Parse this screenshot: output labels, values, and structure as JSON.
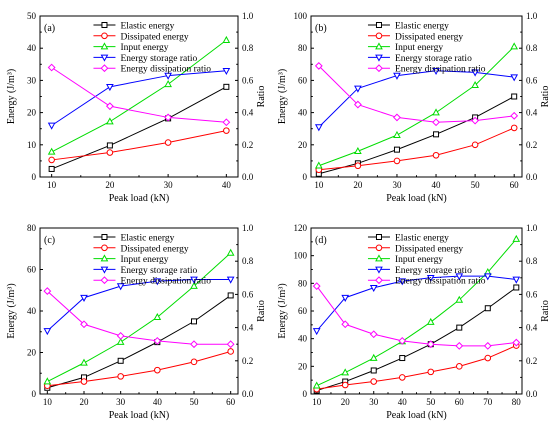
{
  "chart_data": [
    {
      "type": "line",
      "panel_label": "(a)",
      "x": [
        10,
        20,
        30,
        40
      ],
      "xlim": [
        8,
        42
      ],
      "xticks": [
        10,
        20,
        30,
        40
      ],
      "xlabel": "Peak load (kN)",
      "ylabel": "Energy (J/m³)",
      "ylim": [
        0,
        50
      ],
      "yticks": [
        0,
        10,
        20,
        30,
        40,
        50
      ],
      "y2label": "Ratio",
      "y2lim": [
        0,
        1.0
      ],
      "y2ticks": [
        "0.0",
        "0.2",
        "0.4",
        "0.6",
        "0.8",
        "1.0"
      ],
      "legend_position": "top-center",
      "series": [
        {
          "name": "Elastic energy",
          "axis": "left",
          "color": "#000000",
          "values": [
            2.5,
            9.8,
            18.2,
            28.0
          ]
        },
        {
          "name": "Dissipated energy",
          "axis": "left",
          "color": "#ff0000",
          "values": [
            5.3,
            7.6,
            10.7,
            14.4
          ]
        },
        {
          "name": "Input energy",
          "axis": "left",
          "color": "#00dd00",
          "values": [
            7.8,
            17.2,
            28.8,
            42.5
          ]
        },
        {
          "name": "Energy storage ratio",
          "axis": "right",
          "color": "#0000ff",
          "values": [
            0.32,
            0.56,
            0.63,
            0.66
          ]
        },
        {
          "name": "Energy dissipation ratio",
          "axis": "right",
          "color": "#ff00ff",
          "values": [
            0.68,
            0.44,
            0.37,
            0.34
          ]
        }
      ]
    },
    {
      "type": "line",
      "panel_label": "(b)",
      "x": [
        10,
        20,
        30,
        40,
        50,
        60
      ],
      "xlim": [
        8,
        62
      ],
      "xticks": [
        10,
        20,
        30,
        40,
        50,
        60
      ],
      "xlabel": "Peak load (kN)",
      "ylabel": "Energy (J/m³)",
      "ylim": [
        0,
        100
      ],
      "yticks": [
        0,
        20,
        40,
        60,
        80,
        100
      ],
      "y2label": "Ratio",
      "y2lim": [
        0,
        1.0
      ],
      "y2ticks": [
        "0.0",
        "0.2",
        "0.4",
        "0.6",
        "0.8",
        "1.0"
      ],
      "legend_position": "top-center",
      "series": [
        {
          "name": "Elastic energy",
          "axis": "left",
          "color": "#000000",
          "values": [
            2.0,
            8.5,
            17.0,
            26.5,
            37.0,
            50.0
          ]
        },
        {
          "name": "Dissipated energy",
          "axis": "left",
          "color": "#ff0000",
          "values": [
            4.5,
            7.0,
            10.0,
            13.5,
            20.0,
            30.5
          ]
        },
        {
          "name": "Input energy",
          "axis": "left",
          "color": "#00dd00",
          "values": [
            7.0,
            16.0,
            26.0,
            40.0,
            57.0,
            81.0
          ]
        },
        {
          "name": "Energy storage ratio",
          "axis": "right",
          "color": "#0000ff",
          "values": [
            0.31,
            0.55,
            0.63,
            0.66,
            0.65,
            0.62
          ]
        },
        {
          "name": "Energy dissipation ratio",
          "axis": "right",
          "color": "#ff00ff",
          "values": [
            0.69,
            0.45,
            0.37,
            0.34,
            0.35,
            0.38
          ]
        }
      ]
    },
    {
      "type": "line",
      "panel_label": "(c)",
      "x": [
        10,
        20,
        30,
        40,
        50,
        60
      ],
      "xlim": [
        8,
        62
      ],
      "xticks": [
        10,
        20,
        30,
        40,
        50,
        60
      ],
      "xlabel": "Peak load (kN)",
      "ylabel": "Energy (J/m³)",
      "ylim": [
        0,
        80
      ],
      "yticks": [
        0,
        20,
        40,
        60,
        80
      ],
      "y2label": "Ratio",
      "y2lim": [
        0,
        1.0
      ],
      "y2ticks": [
        "0.0",
        "0.2",
        "0.4",
        "0.6",
        "0.8",
        "1.0"
      ],
      "legend_position": "top-center",
      "series": [
        {
          "name": "Elastic energy",
          "axis": "left",
          "color": "#000000",
          "values": [
            3.0,
            8.0,
            16.0,
            25.0,
            35.0,
            47.5
          ]
        },
        {
          "name": "Dissipated energy",
          "axis": "left",
          "color": "#ff0000",
          "values": [
            4.0,
            6.0,
            8.5,
            11.5,
            15.5,
            20.5
          ]
        },
        {
          "name": "Input energy",
          "axis": "left",
          "color": "#00dd00",
          "values": [
            6.0,
            15.0,
            25.0,
            37.0,
            52.0,
            68.0
          ]
        },
        {
          "name": "Energy storage ratio",
          "axis": "right",
          "color": "#0000ff",
          "values": [
            0.38,
            0.58,
            0.65,
            0.68,
            0.69,
            0.69
          ]
        },
        {
          "name": "Energy dissipation ratio",
          "axis": "right",
          "color": "#ff00ff",
          "values": [
            0.62,
            0.42,
            0.35,
            0.32,
            0.3,
            0.3
          ]
        }
      ]
    },
    {
      "type": "line",
      "panel_label": "(d)",
      "x": [
        10,
        20,
        30,
        40,
        50,
        60,
        70,
        80
      ],
      "xlim": [
        8,
        82
      ],
      "xticks": [
        10,
        20,
        30,
        40,
        50,
        60,
        70,
        80
      ],
      "xlabel": "Peak load (kN)",
      "ylabel": "Energy (J/m³)",
      "ylim": [
        0,
        120
      ],
      "yticks": [
        0,
        20,
        40,
        60,
        80,
        100,
        120
      ],
      "y2label": "Ratio",
      "y2lim": [
        0,
        1.0
      ],
      "y2ticks": [
        "0.0",
        "0.2",
        "0.4",
        "0.6",
        "0.8",
        "1.0"
      ],
      "legend_position": "top-center",
      "series": [
        {
          "name": "Elastic energy",
          "axis": "left",
          "color": "#000000",
          "values": [
            2.5,
            9.0,
            17.0,
            26.0,
            36.0,
            48.0,
            62.0,
            77.0
          ]
        },
        {
          "name": "Dissipated energy",
          "axis": "left",
          "color": "#ff0000",
          "values": [
            3.5,
            6.5,
            9.0,
            12.0,
            16.0,
            20.0,
            26.0,
            35.0
          ]
        },
        {
          "name": "Input energy",
          "axis": "left",
          "color": "#00dd00",
          "values": [
            6.0,
            15.5,
            26.0,
            38.0,
            52.0,
            68.0,
            88.0,
            112.0
          ]
        },
        {
          "name": "Energy storage ratio",
          "axis": "right",
          "color": "#0000ff",
          "values": [
            0.38,
            0.58,
            0.64,
            0.68,
            0.7,
            0.71,
            0.71,
            0.69
          ]
        },
        {
          "name": "Energy dissipation ratio",
          "axis": "right",
          "color": "#ff00ff",
          "values": [
            0.65,
            0.42,
            0.36,
            0.32,
            0.3,
            0.29,
            0.29,
            0.31
          ]
        }
      ]
    }
  ]
}
